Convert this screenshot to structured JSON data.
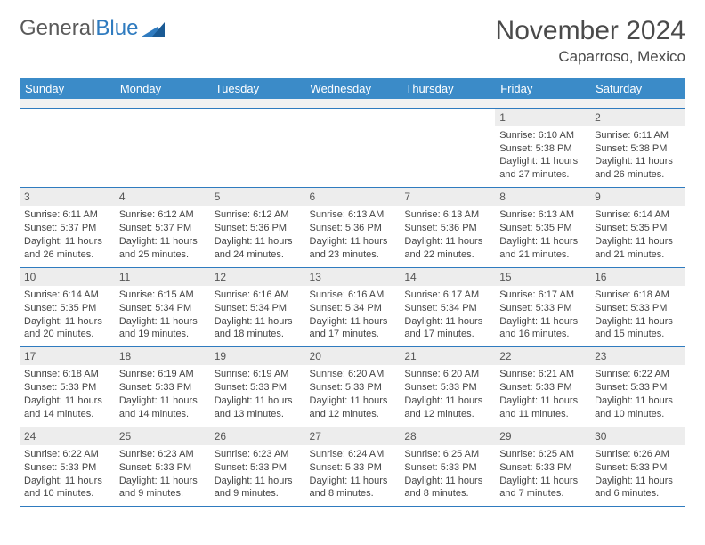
{
  "logo": {
    "text1": "General",
    "text2": "Blue"
  },
  "title": "November 2024",
  "location": "Caparroso, Mexico",
  "colors": {
    "header_bg": "#3b8bc8",
    "header_text": "#ffffff",
    "daynum_bg": "#ededed",
    "row_border": "#2f7bbf",
    "text": "#444444",
    "logo_gray": "#5a5a5a",
    "logo_blue": "#2f7bbf"
  },
  "weekdays": [
    "Sunday",
    "Monday",
    "Tuesday",
    "Wednesday",
    "Thursday",
    "Friday",
    "Saturday"
  ],
  "weeks": [
    [
      null,
      null,
      null,
      null,
      null,
      {
        "day": "1",
        "sunrise": "Sunrise: 6:10 AM",
        "sunset": "Sunset: 5:38 PM",
        "dl1": "Daylight: 11 hours",
        "dl2": "and 27 minutes."
      },
      {
        "day": "2",
        "sunrise": "Sunrise: 6:11 AM",
        "sunset": "Sunset: 5:38 PM",
        "dl1": "Daylight: 11 hours",
        "dl2": "and 26 minutes."
      }
    ],
    [
      {
        "day": "3",
        "sunrise": "Sunrise: 6:11 AM",
        "sunset": "Sunset: 5:37 PM",
        "dl1": "Daylight: 11 hours",
        "dl2": "and 26 minutes."
      },
      {
        "day": "4",
        "sunrise": "Sunrise: 6:12 AM",
        "sunset": "Sunset: 5:37 PM",
        "dl1": "Daylight: 11 hours",
        "dl2": "and 25 minutes."
      },
      {
        "day": "5",
        "sunrise": "Sunrise: 6:12 AM",
        "sunset": "Sunset: 5:36 PM",
        "dl1": "Daylight: 11 hours",
        "dl2": "and 24 minutes."
      },
      {
        "day": "6",
        "sunrise": "Sunrise: 6:13 AM",
        "sunset": "Sunset: 5:36 PM",
        "dl1": "Daylight: 11 hours",
        "dl2": "and 23 minutes."
      },
      {
        "day": "7",
        "sunrise": "Sunrise: 6:13 AM",
        "sunset": "Sunset: 5:36 PM",
        "dl1": "Daylight: 11 hours",
        "dl2": "and 22 minutes."
      },
      {
        "day": "8",
        "sunrise": "Sunrise: 6:13 AM",
        "sunset": "Sunset: 5:35 PM",
        "dl1": "Daylight: 11 hours",
        "dl2": "and 21 minutes."
      },
      {
        "day": "9",
        "sunrise": "Sunrise: 6:14 AM",
        "sunset": "Sunset: 5:35 PM",
        "dl1": "Daylight: 11 hours",
        "dl2": "and 21 minutes."
      }
    ],
    [
      {
        "day": "10",
        "sunrise": "Sunrise: 6:14 AM",
        "sunset": "Sunset: 5:35 PM",
        "dl1": "Daylight: 11 hours",
        "dl2": "and 20 minutes."
      },
      {
        "day": "11",
        "sunrise": "Sunrise: 6:15 AM",
        "sunset": "Sunset: 5:34 PM",
        "dl1": "Daylight: 11 hours",
        "dl2": "and 19 minutes."
      },
      {
        "day": "12",
        "sunrise": "Sunrise: 6:16 AM",
        "sunset": "Sunset: 5:34 PM",
        "dl1": "Daylight: 11 hours",
        "dl2": "and 18 minutes."
      },
      {
        "day": "13",
        "sunrise": "Sunrise: 6:16 AM",
        "sunset": "Sunset: 5:34 PM",
        "dl1": "Daylight: 11 hours",
        "dl2": "and 17 minutes."
      },
      {
        "day": "14",
        "sunrise": "Sunrise: 6:17 AM",
        "sunset": "Sunset: 5:34 PM",
        "dl1": "Daylight: 11 hours",
        "dl2": "and 17 minutes."
      },
      {
        "day": "15",
        "sunrise": "Sunrise: 6:17 AM",
        "sunset": "Sunset: 5:33 PM",
        "dl1": "Daylight: 11 hours",
        "dl2": "and 16 minutes."
      },
      {
        "day": "16",
        "sunrise": "Sunrise: 6:18 AM",
        "sunset": "Sunset: 5:33 PM",
        "dl1": "Daylight: 11 hours",
        "dl2": "and 15 minutes."
      }
    ],
    [
      {
        "day": "17",
        "sunrise": "Sunrise: 6:18 AM",
        "sunset": "Sunset: 5:33 PM",
        "dl1": "Daylight: 11 hours",
        "dl2": "and 14 minutes."
      },
      {
        "day": "18",
        "sunrise": "Sunrise: 6:19 AM",
        "sunset": "Sunset: 5:33 PM",
        "dl1": "Daylight: 11 hours",
        "dl2": "and 14 minutes."
      },
      {
        "day": "19",
        "sunrise": "Sunrise: 6:19 AM",
        "sunset": "Sunset: 5:33 PM",
        "dl1": "Daylight: 11 hours",
        "dl2": "and 13 minutes."
      },
      {
        "day": "20",
        "sunrise": "Sunrise: 6:20 AM",
        "sunset": "Sunset: 5:33 PM",
        "dl1": "Daylight: 11 hours",
        "dl2": "and 12 minutes."
      },
      {
        "day": "21",
        "sunrise": "Sunrise: 6:20 AM",
        "sunset": "Sunset: 5:33 PM",
        "dl1": "Daylight: 11 hours",
        "dl2": "and 12 minutes."
      },
      {
        "day": "22",
        "sunrise": "Sunrise: 6:21 AM",
        "sunset": "Sunset: 5:33 PM",
        "dl1": "Daylight: 11 hours",
        "dl2": "and 11 minutes."
      },
      {
        "day": "23",
        "sunrise": "Sunrise: 6:22 AM",
        "sunset": "Sunset: 5:33 PM",
        "dl1": "Daylight: 11 hours",
        "dl2": "and 10 minutes."
      }
    ],
    [
      {
        "day": "24",
        "sunrise": "Sunrise: 6:22 AM",
        "sunset": "Sunset: 5:33 PM",
        "dl1": "Daylight: 11 hours",
        "dl2": "and 10 minutes."
      },
      {
        "day": "25",
        "sunrise": "Sunrise: 6:23 AM",
        "sunset": "Sunset: 5:33 PM",
        "dl1": "Daylight: 11 hours",
        "dl2": "and 9 minutes."
      },
      {
        "day": "26",
        "sunrise": "Sunrise: 6:23 AM",
        "sunset": "Sunset: 5:33 PM",
        "dl1": "Daylight: 11 hours",
        "dl2": "and 9 minutes."
      },
      {
        "day": "27",
        "sunrise": "Sunrise: 6:24 AM",
        "sunset": "Sunset: 5:33 PM",
        "dl1": "Daylight: 11 hours",
        "dl2": "and 8 minutes."
      },
      {
        "day": "28",
        "sunrise": "Sunrise: 6:25 AM",
        "sunset": "Sunset: 5:33 PM",
        "dl1": "Daylight: 11 hours",
        "dl2": "and 8 minutes."
      },
      {
        "day": "29",
        "sunrise": "Sunrise: 6:25 AM",
        "sunset": "Sunset: 5:33 PM",
        "dl1": "Daylight: 11 hours",
        "dl2": "and 7 minutes."
      },
      {
        "day": "30",
        "sunrise": "Sunrise: 6:26 AM",
        "sunset": "Sunset: 5:33 PM",
        "dl1": "Daylight: 11 hours",
        "dl2": "and 6 minutes."
      }
    ]
  ]
}
